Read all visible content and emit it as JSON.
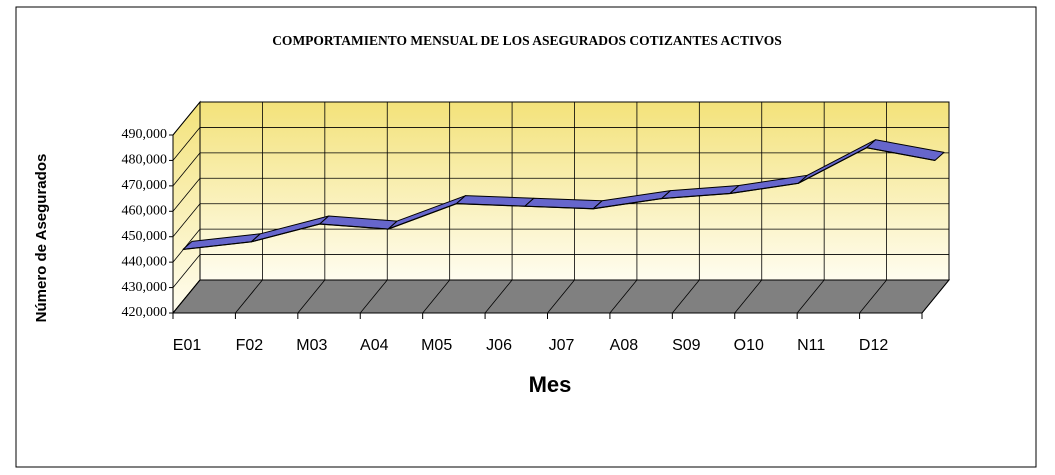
{
  "chart_data": {
    "type": "line3d",
    "title": "COMPORTAMIENTO MENSUAL DE LOS ASEGURADOS COTIZANTES ACTIVOS",
    "xlabel": "Mes",
    "ylabel": "Número de Asegurados",
    "categories": [
      "E01",
      "F02",
      "M03",
      "A04",
      "M05",
      "J06",
      "J07",
      "A08",
      "S09",
      "O10",
      "N11",
      "D12"
    ],
    "series": [
      {
        "name": "Asegurados",
        "color": "#6666cc",
        "values": [
          445000,
          448000,
          455000,
          453000,
          463000,
          462000,
          461000,
          465000,
          467000,
          471000,
          485000,
          480000
        ]
      }
    ],
    "ylim": [
      420000,
      490000
    ],
    "yticks": [
      {
        "value": 420000,
        "label": "420,000"
      },
      {
        "value": 430000,
        "label": "430,000"
      },
      {
        "value": 440000,
        "label": "440,000"
      },
      {
        "value": 450000,
        "label": "450,000"
      },
      {
        "value": 460000,
        "label": "460,000"
      },
      {
        "value": 470000,
        "label": "470,000"
      },
      {
        "value": 480000,
        "label": "480,000"
      },
      {
        "value": 490000,
        "label": "490,000"
      }
    ],
    "grid": true
  }
}
